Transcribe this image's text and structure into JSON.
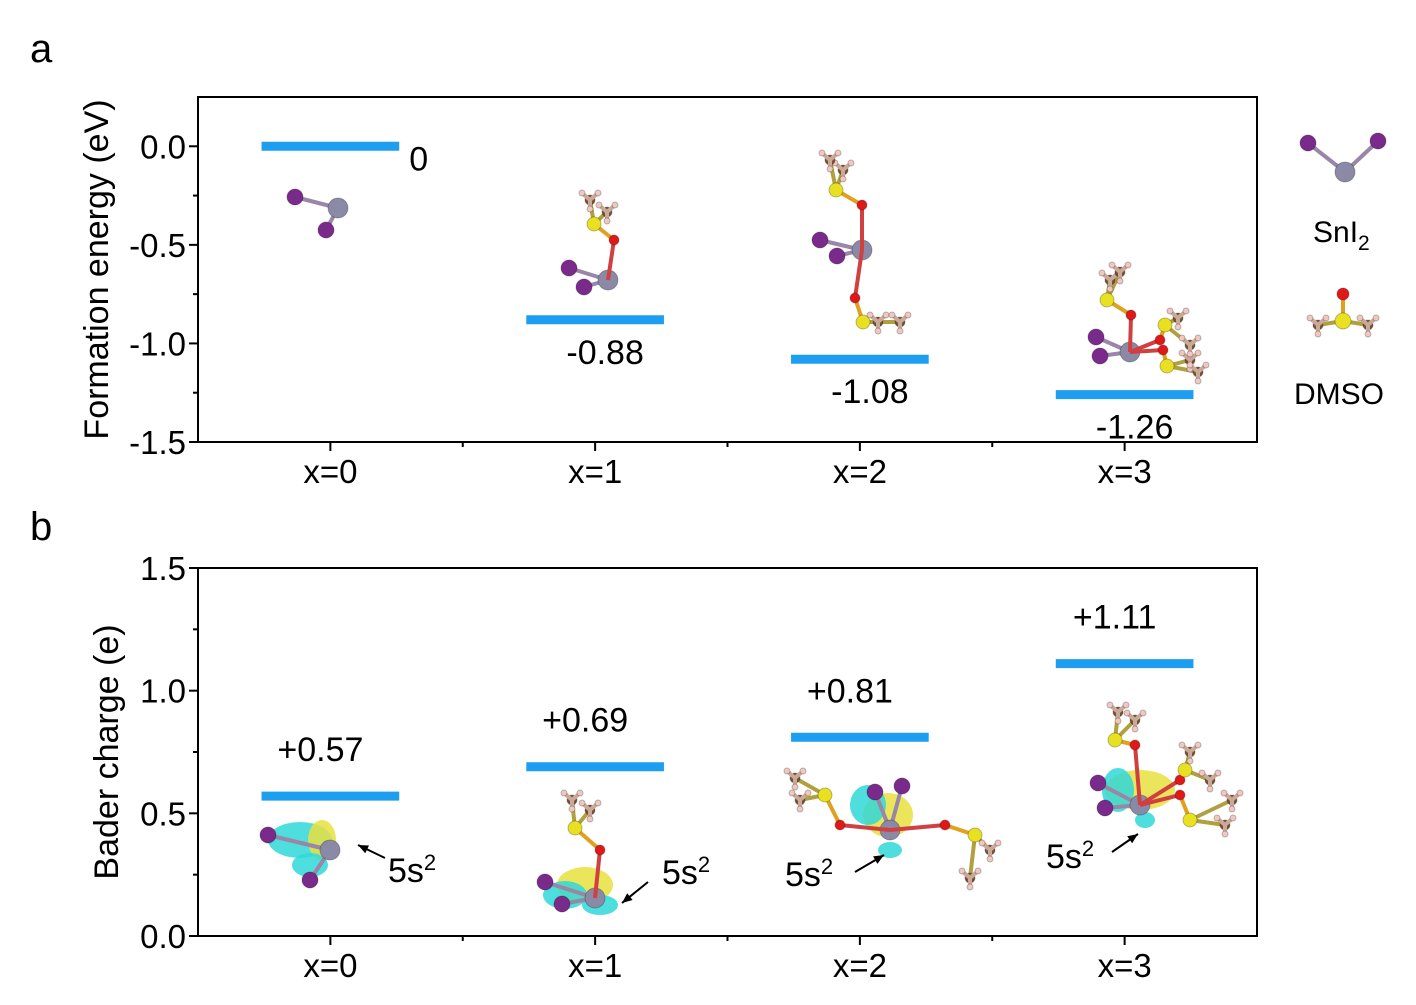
{
  "colors": {
    "level": "#1e9ef0",
    "sn": "#8a8aa6",
    "i": "#7a2a8a",
    "o": "#e01818",
    "s": "#e8e020",
    "c": "#7a5030",
    "h": "#f0c8c0",
    "density_pos": "#e8e040",
    "density_neg": "#30d8d8"
  },
  "legend": {
    "sni2_label": "SnI",
    "sni2_sub": "2",
    "dmso_label": "DMSO"
  },
  "chart_data": [
    {
      "panel": "a",
      "type": "line",
      "style": "energy-levels",
      "categories": [
        "x=0",
        "x=1",
        "x=2",
        "x=3"
      ],
      "values": [
        0,
        -0.88,
        -1.08,
        -1.26
      ],
      "data_labels": [
        "0",
        "-0.88",
        "-1.08",
        "-1.26"
      ],
      "ylabel": "Formation energy (eV)",
      "xlabel": "",
      "ylim": [
        -1.5,
        0.25
      ],
      "yticks": [
        0.0,
        -0.5,
        -1.0,
        -1.5
      ],
      "ytick_labels": [
        "0.0",
        "-0.5",
        "-1.0",
        "-1.5"
      ],
      "grid": false
    },
    {
      "panel": "b",
      "type": "line",
      "style": "energy-levels",
      "categories": [
        "x=0",
        "x=1",
        "x=2",
        "x=3"
      ],
      "values": [
        0.57,
        0.69,
        0.81,
        1.11
      ],
      "data_labels": [
        "+0.57",
        "+0.69",
        "+0.81",
        "+1.11"
      ],
      "annotations": [
        "5s",
        "5s",
        "5s",
        "5s"
      ],
      "annotation_sup": "2",
      "ylabel": "Bader charge (e)",
      "xlabel": "",
      "ylim": [
        0,
        1.5
      ],
      "yticks": [
        0.0,
        0.5,
        1.0,
        1.5
      ],
      "ytick_labels": [
        "0.0",
        "0.5",
        "1.0",
        "1.5"
      ],
      "grid": false
    }
  ]
}
